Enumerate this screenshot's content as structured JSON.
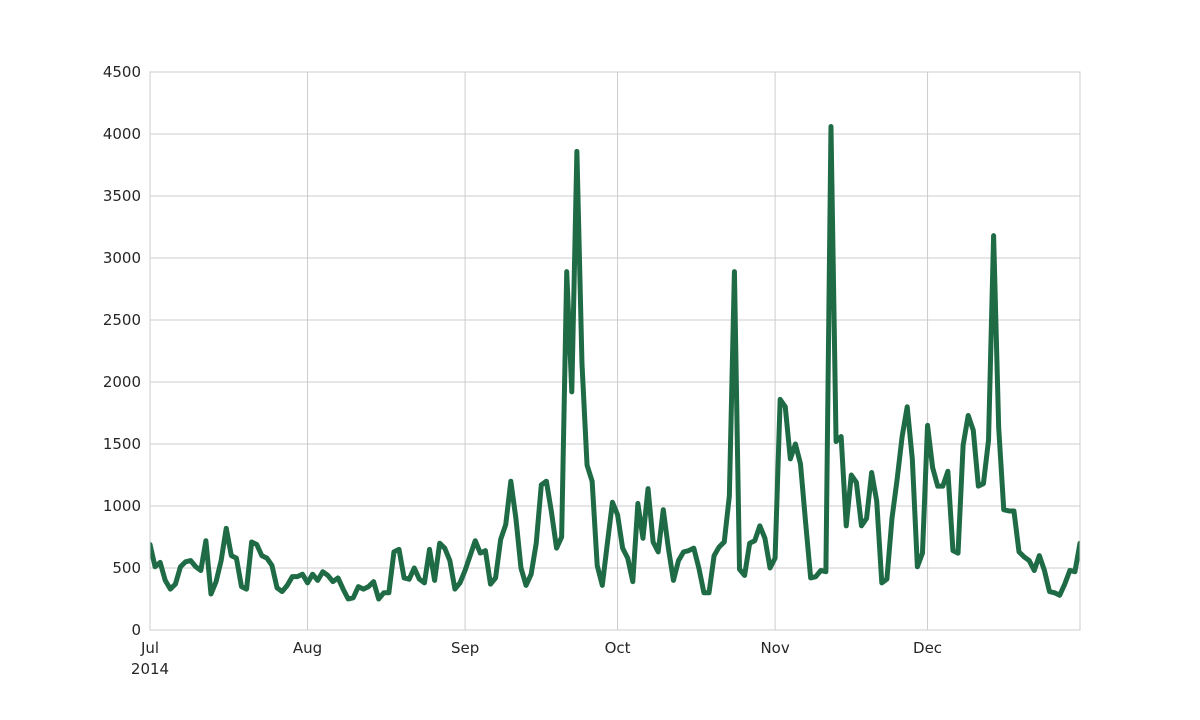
{
  "chart_data": {
    "type": "line",
    "title": "",
    "xlabel": "",
    "ylabel": "",
    "ylim": [
      0,
      4500
    ],
    "xlim": [
      "2014-07-01",
      "2014-12-31"
    ],
    "grid": true,
    "yticks": [
      0,
      500,
      1000,
      1500,
      2000,
      2500,
      3000,
      3500,
      4000,
      4500
    ],
    "xticks": [
      {
        "date": "2014-07-01",
        "label": "Jul",
        "sublabel": "2014"
      },
      {
        "date": "2014-08-01",
        "label": "Aug",
        "sublabel": ""
      },
      {
        "date": "2014-09-01",
        "label": "Sep",
        "sublabel": ""
      },
      {
        "date": "2014-10-01",
        "label": "Oct",
        "sublabel": ""
      },
      {
        "date": "2014-11-01",
        "label": "Nov",
        "sublabel": ""
      },
      {
        "date": "2014-12-01",
        "label": "Dec",
        "sublabel": ""
      }
    ],
    "series": [
      {
        "color": "#1e6b45",
        "points": [
          [
            "2014-07-01",
            690
          ],
          [
            "2014-07-02",
            510
          ],
          [
            "2014-07-03",
            545
          ],
          [
            "2014-07-04",
            400
          ],
          [
            "2014-07-05",
            330
          ],
          [
            "2014-07-06",
            370
          ],
          [
            "2014-07-07",
            510
          ],
          [
            "2014-07-08",
            550
          ],
          [
            "2014-07-09",
            560
          ],
          [
            "2014-07-10",
            510
          ],
          [
            "2014-07-11",
            480
          ],
          [
            "2014-07-12",
            720
          ],
          [
            "2014-07-13",
            290
          ],
          [
            "2014-07-14",
            390
          ],
          [
            "2014-07-15",
            560
          ],
          [
            "2014-07-16",
            820
          ],
          [
            "2014-07-17",
            600
          ],
          [
            "2014-07-18",
            580
          ],
          [
            "2014-07-19",
            350
          ],
          [
            "2014-07-20",
            330
          ],
          [
            "2014-07-21",
            710
          ],
          [
            "2014-07-22",
            690
          ],
          [
            "2014-07-23",
            600
          ],
          [
            "2014-07-24",
            580
          ],
          [
            "2014-07-25",
            520
          ],
          [
            "2014-07-26",
            340
          ],
          [
            "2014-07-27",
            310
          ],
          [
            "2014-07-28",
            360
          ],
          [
            "2014-07-29",
            430
          ],
          [
            "2014-07-30",
            430
          ],
          [
            "2014-07-31",
            450
          ],
          [
            "2014-08-01",
            380
          ],
          [
            "2014-08-02",
            450
          ],
          [
            "2014-08-03",
            400
          ],
          [
            "2014-08-04",
            470
          ],
          [
            "2014-08-05",
            440
          ],
          [
            "2014-08-06",
            390
          ],
          [
            "2014-08-07",
            420
          ],
          [
            "2014-08-08",
            330
          ],
          [
            "2014-08-09",
            250
          ],
          [
            "2014-08-10",
            260
          ],
          [
            "2014-08-11",
            350
          ],
          [
            "2014-08-12",
            330
          ],
          [
            "2014-08-13",
            350
          ],
          [
            "2014-08-14",
            390
          ],
          [
            "2014-08-15",
            250
          ],
          [
            "2014-08-16",
            300
          ],
          [
            "2014-08-17",
            300
          ],
          [
            "2014-08-18",
            630
          ],
          [
            "2014-08-19",
            650
          ],
          [
            "2014-08-20",
            420
          ],
          [
            "2014-08-21",
            410
          ],
          [
            "2014-08-22",
            500
          ],
          [
            "2014-08-23",
            410
          ],
          [
            "2014-08-24",
            380
          ],
          [
            "2014-08-25",
            650
          ],
          [
            "2014-08-26",
            400
          ],
          [
            "2014-08-27",
            700
          ],
          [
            "2014-08-28",
            660
          ],
          [
            "2014-08-29",
            560
          ],
          [
            "2014-08-30",
            330
          ],
          [
            "2014-08-31",
            380
          ],
          [
            "2014-09-01",
            480
          ],
          [
            "2014-09-02",
            600
          ],
          [
            "2014-09-03",
            720
          ],
          [
            "2014-09-04",
            620
          ],
          [
            "2014-09-05",
            640
          ],
          [
            "2014-09-06",
            370
          ],
          [
            "2014-09-07",
            420
          ],
          [
            "2014-09-08",
            730
          ],
          [
            "2014-09-09",
            850
          ],
          [
            "2014-09-10",
            1200
          ],
          [
            "2014-09-11",
            900
          ],
          [
            "2014-09-12",
            500
          ],
          [
            "2014-09-13",
            360
          ],
          [
            "2014-09-14",
            450
          ],
          [
            "2014-09-15",
            700
          ],
          [
            "2014-09-16",
            1170
          ],
          [
            "2014-09-17",
            1200
          ],
          [
            "2014-09-18",
            950
          ],
          [
            "2014-09-19",
            660
          ],
          [
            "2014-09-20",
            750
          ],
          [
            "2014-09-21",
            2890
          ],
          [
            "2014-09-22",
            1920
          ],
          [
            "2014-09-23",
            3860
          ],
          [
            "2014-09-24",
            2150
          ],
          [
            "2014-09-25",
            1330
          ],
          [
            "2014-09-26",
            1200
          ],
          [
            "2014-09-27",
            520
          ],
          [
            "2014-09-28",
            360
          ],
          [
            "2014-09-29",
            700
          ],
          [
            "2014-09-30",
            1030
          ],
          [
            "2014-10-01",
            930
          ],
          [
            "2014-10-02",
            660
          ],
          [
            "2014-10-03",
            580
          ],
          [
            "2014-10-04",
            390
          ],
          [
            "2014-10-05",
            1020
          ],
          [
            "2014-10-06",
            740
          ],
          [
            "2014-10-07",
            1140
          ],
          [
            "2014-10-08",
            710
          ],
          [
            "2014-10-09",
            630
          ],
          [
            "2014-10-10",
            970
          ],
          [
            "2014-10-11",
            660
          ],
          [
            "2014-10-12",
            400
          ],
          [
            "2014-10-13",
            560
          ],
          [
            "2014-10-14",
            630
          ],
          [
            "2014-10-15",
            640
          ],
          [
            "2014-10-16",
            660
          ],
          [
            "2014-10-17",
            500
          ],
          [
            "2014-10-18",
            300
          ],
          [
            "2014-10-19",
            300
          ],
          [
            "2014-10-20",
            600
          ],
          [
            "2014-10-21",
            670
          ],
          [
            "2014-10-22",
            710
          ],
          [
            "2014-10-23",
            1080
          ],
          [
            "2014-10-24",
            2890
          ],
          [
            "2014-10-25",
            490
          ],
          [
            "2014-10-26",
            440
          ],
          [
            "2014-10-27",
            700
          ],
          [
            "2014-10-28",
            720
          ],
          [
            "2014-10-29",
            840
          ],
          [
            "2014-10-30",
            740
          ],
          [
            "2014-10-31",
            500
          ],
          [
            "2014-11-01",
            580
          ],
          [
            "2014-11-02",
            1860
          ],
          [
            "2014-11-03",
            1800
          ],
          [
            "2014-11-04",
            1380
          ],
          [
            "2014-11-05",
            1500
          ],
          [
            "2014-11-06",
            1340
          ],
          [
            "2014-11-07",
            870
          ],
          [
            "2014-11-08",
            420
          ],
          [
            "2014-11-09",
            430
          ],
          [
            "2014-11-10",
            480
          ],
          [
            "2014-11-11",
            470
          ],
          [
            "2014-11-12",
            4060
          ],
          [
            "2014-11-13",
            1520
          ],
          [
            "2014-11-14",
            1560
          ],
          [
            "2014-11-15",
            840
          ],
          [
            "2014-11-16",
            1250
          ],
          [
            "2014-11-17",
            1190
          ],
          [
            "2014-11-18",
            840
          ],
          [
            "2014-11-19",
            900
          ],
          [
            "2014-11-20",
            1270
          ],
          [
            "2014-11-21",
            1040
          ],
          [
            "2014-11-22",
            380
          ],
          [
            "2014-11-23",
            410
          ],
          [
            "2014-11-24",
            900
          ],
          [
            "2014-11-25",
            1210
          ],
          [
            "2014-11-26",
            1560
          ],
          [
            "2014-11-27",
            1800
          ],
          [
            "2014-11-28",
            1380
          ],
          [
            "2014-11-29",
            510
          ],
          [
            "2014-11-30",
            620
          ],
          [
            "2014-12-01",
            1650
          ],
          [
            "2014-12-02",
            1310
          ],
          [
            "2014-12-03",
            1160
          ],
          [
            "2014-12-04",
            1160
          ],
          [
            "2014-12-05",
            1280
          ],
          [
            "2014-12-06",
            640
          ],
          [
            "2014-12-07",
            620
          ],
          [
            "2014-12-08",
            1490
          ],
          [
            "2014-12-09",
            1730
          ],
          [
            "2014-12-10",
            1610
          ],
          [
            "2014-12-11",
            1160
          ],
          [
            "2014-12-12",
            1180
          ],
          [
            "2014-12-13",
            1530
          ],
          [
            "2014-12-14",
            3180
          ],
          [
            "2014-12-15",
            1630
          ],
          [
            "2014-12-16",
            970
          ],
          [
            "2014-12-17",
            960
          ],
          [
            "2014-12-18",
            960
          ],
          [
            "2014-12-19",
            630
          ],
          [
            "2014-12-20",
            590
          ],
          [
            "2014-12-21",
            560
          ],
          [
            "2014-12-22",
            480
          ],
          [
            "2014-12-23",
            600
          ],
          [
            "2014-12-24",
            480
          ],
          [
            "2014-12-25",
            310
          ],
          [
            "2014-12-26",
            300
          ],
          [
            "2014-12-27",
            280
          ],
          [
            "2014-12-28",
            370
          ],
          [
            "2014-12-29",
            480
          ],
          [
            "2014-12-30",
            470
          ],
          [
            "2014-12-31",
            700
          ]
        ]
      }
    ]
  }
}
